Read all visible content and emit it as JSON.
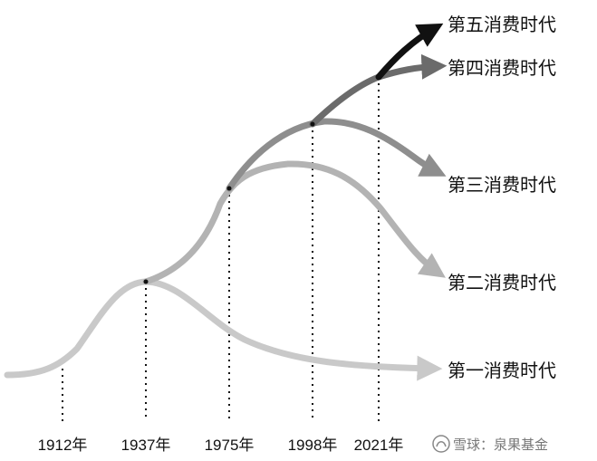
{
  "years": [
    "1912年",
    "1937年",
    "1975年",
    "1998年",
    "2021年"
  ],
  "eras": [
    {
      "id": "era-1",
      "label": "第一消费时代",
      "color": "#c9c9c9"
    },
    {
      "id": "era-2",
      "label": "第二消费时代",
      "color": "#b3b3b3"
    },
    {
      "id": "era-3",
      "label": "第三消费时代",
      "color": "#8e8e8e"
    },
    {
      "id": "era-4",
      "label": "第四消费时代",
      "color": "#6b6b6b"
    },
    {
      "id": "era-5",
      "label": "第五消费时代",
      "color": "#111111"
    }
  ],
  "watermark": {
    "text": "雪球：泉果基金",
    "icon": "snowball-logo-icon"
  }
}
